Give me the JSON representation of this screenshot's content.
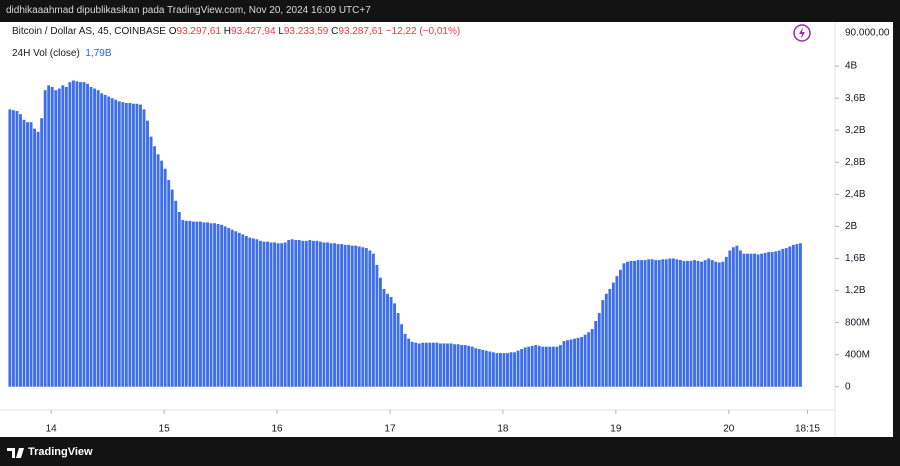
{
  "header": {
    "text": "didhikaaahmad dipublikasikan pada TradingView.com, Nov 20, 2024 16:09 UTC+7"
  },
  "legend": {
    "symbol": "Bitcoin / Dollar AS, 45, COINBASE",
    "ohlc": [
      {
        "key": "O",
        "value": "93.297,61"
      },
      {
        "key": "H",
        "value": "93.427,94"
      },
      {
        "key": "L",
        "value": "93.233,59"
      },
      {
        "key": "C",
        "value": "93.287,61"
      }
    ],
    "change": "−12,22 (−0,01%)"
  },
  "chart_data": {
    "type": "bar",
    "title": "24H Vol (close)",
    "last_value_label": "1,79B",
    "price_axis_label": "90.000,00",
    "color": "#3f6fe8",
    "values": [
      3.46,
      3.45,
      3.44,
      3.4,
      3.33,
      3.3,
      3.3,
      3.22,
      3.18,
      3.35,
      3.7,
      3.76,
      3.74,
      3.7,
      3.72,
      3.76,
      3.74,
      3.8,
      3.82,
      3.81,
      3.8,
      3.8,
      3.78,
      3.74,
      3.72,
      3.7,
      3.66,
      3.64,
      3.62,
      3.6,
      3.58,
      3.56,
      3.55,
      3.54,
      3.54,
      3.53,
      3.53,
      3.52,
      3.46,
      3.32,
      3.12,
      3.0,
      2.9,
      2.82,
      2.72,
      2.58,
      2.46,
      2.32,
      2.18,
      2.08,
      2.07,
      2.07,
      2.06,
      2.06,
      2.06,
      2.05,
      2.05,
      2.04,
      2.04,
      2.03,
      2.02,
      2.0,
      1.98,
      1.96,
      1.94,
      1.92,
      1.9,
      1.88,
      1.86,
      1.85,
      1.84,
      1.82,
      1.81,
      1.81,
      1.8,
      1.8,
      1.79,
      1.79,
      1.8,
      1.83,
      1.84,
      1.83,
      1.83,
      1.82,
      1.82,
      1.83,
      1.82,
      1.82,
      1.81,
      1.8,
      1.8,
      1.79,
      1.79,
      1.78,
      1.78,
      1.77,
      1.77,
      1.76,
      1.76,
      1.75,
      1.74,
      1.73,
      1.7,
      1.66,
      1.52,
      1.36,
      1.22,
      1.16,
      1.12,
      1.04,
      0.92,
      0.78,
      0.66,
      0.6,
      0.56,
      0.55,
      0.54,
      0.55,
      0.55,
      0.55,
      0.55,
      0.55,
      0.54,
      0.54,
      0.54,
      0.54,
      0.53,
      0.53,
      0.52,
      0.52,
      0.51,
      0.5,
      0.48,
      0.47,
      0.46,
      0.45,
      0.44,
      0.43,
      0.42,
      0.42,
      0.42,
      0.42,
      0.43,
      0.43,
      0.45,
      0.47,
      0.49,
      0.5,
      0.51,
      0.52,
      0.51,
      0.5,
      0.5,
      0.5,
      0.5,
      0.5,
      0.52,
      0.57,
      0.58,
      0.59,
      0.6,
      0.61,
      0.62,
      0.65,
      0.68,
      0.72,
      0.82,
      0.92,
      1.08,
      1.16,
      1.22,
      1.3,
      1.38,
      1.46,
      1.54,
      1.56,
      1.57,
      1.57,
      1.58,
      1.58,
      1.58,
      1.59,
      1.59,
      1.58,
      1.58,
      1.59,
      1.59,
      1.6,
      1.6,
      1.59,
      1.58,
      1.57,
      1.57,
      1.57,
      1.58,
      1.57,
      1.56,
      1.58,
      1.6,
      1.58,
      1.56,
      1.55,
      1.56,
      1.62,
      1.7,
      1.74,
      1.76,
      1.7,
      1.66,
      1.66,
      1.66,
      1.66,
      1.65,
      1.66,
      1.67,
      1.68,
      1.68,
      1.69,
      1.7,
      1.72,
      1.73,
      1.75,
      1.77,
      1.78,
      1.79
    ],
    "ylim": [
      -0.29,
      4.55
    ],
    "yticks": [
      0,
      {
        "value": 0.4,
        "label": "400M"
      },
      {
        "value": 0.8,
        "label": "800M"
      },
      {
        "value": 1.2,
        "label": "1,2B"
      },
      {
        "value": 1.6,
        "label": "1,6B"
      },
      {
        "value": 2,
        "label": "2B"
      },
      {
        "value": 2.4,
        "label": "2,4B"
      },
      {
        "value": 2.8,
        "label": "2,8B"
      },
      {
        "value": 3.2,
        "label": "3,2B"
      },
      {
        "value": 3.6,
        "label": "3,6B"
      },
      {
        "value": 4,
        "label": "4B"
      }
    ],
    "xlim": [
      -2.8,
      233.8
    ],
    "xticks": [
      {
        "value": 11.7,
        "label": "14"
      },
      {
        "value": 43.7,
        "label": "15"
      },
      {
        "value": 75.7,
        "label": "16"
      },
      {
        "value": 107.7,
        "label": "17"
      },
      {
        "value": 139.7,
        "label": "18"
      },
      {
        "value": 171.7,
        "label": "19"
      },
      {
        "value": 203.7,
        "label": "20"
      },
      {
        "value": 226,
        "label": "18:15"
      }
    ]
  },
  "footer": {
    "brand": "TradingView"
  }
}
